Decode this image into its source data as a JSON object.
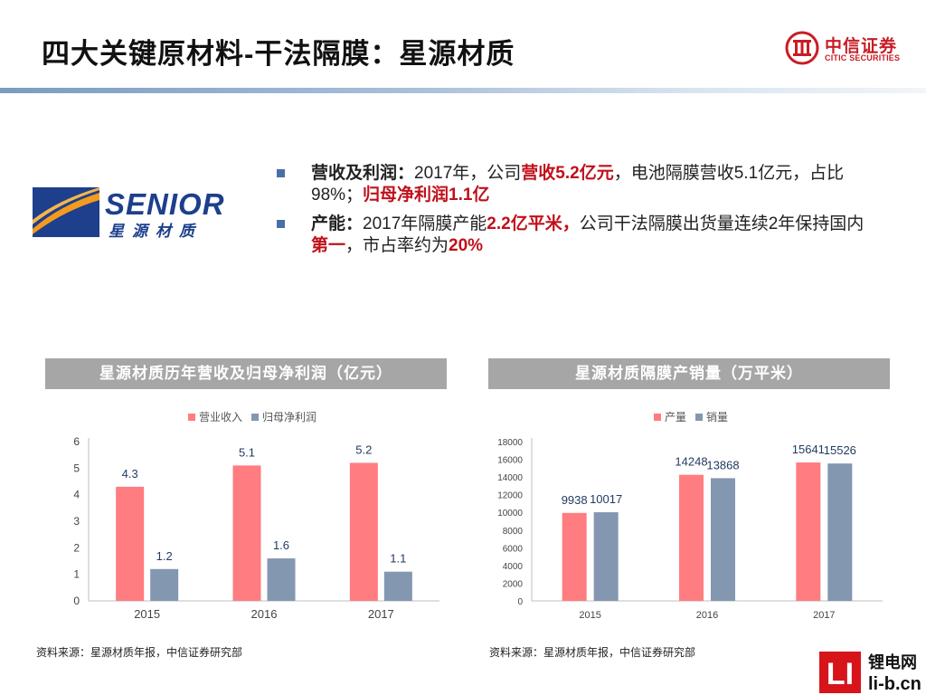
{
  "header": {
    "title": "四大关键原材料-干法隔膜：星源材质",
    "citic_logo": {
      "cn": "中信证券",
      "en": "CITIC SECURITIES",
      "icon": "citic-emblem-icon"
    }
  },
  "company_logo": {
    "word": "SENIOR",
    "cn": "星源材质",
    "icon": "senior-swoosh-icon"
  },
  "bullets": [
    {
      "label": "营收及利润：",
      "p1": "2017年，公司",
      "h1": "营收5.2亿元",
      "p2": "，电池隔膜营收5.1亿元，占比98%；",
      "h2": "归母净利润1.1亿"
    },
    {
      "label": "产能：",
      "p1": "2017年隔膜产能",
      "h1": "2.2亿平米，",
      "p2": "公司干法隔膜出货量连续2年保持国内",
      "h2": "第一",
      "p3": "，市占率约为",
      "h3": "20%"
    }
  ],
  "colors": {
    "series_a": "#ff7c80",
    "series_b": "#8497b0",
    "accent_red": "#c0101a",
    "title_bar": "#a6a6a6"
  },
  "chart_data": [
    {
      "type": "bar",
      "title": "星源材质历年营收及归母净利润（亿元）",
      "categories": [
        "2015",
        "2016",
        "2017"
      ],
      "series": [
        {
          "name": "营业收入",
          "values": [
            4.3,
            5.1,
            5.2
          ]
        },
        {
          "name": "归母净利润",
          "values": [
            1.2,
            1.6,
            1.1
          ]
        }
      ],
      "ylim": [
        0,
        6
      ],
      "yticks": [
        0,
        1,
        2,
        3,
        4,
        5,
        6
      ],
      "legend": "top",
      "grid": false
    },
    {
      "type": "bar",
      "title": "星源材质隔膜产销量（万平米）",
      "categories": [
        "2015",
        "2016",
        "2017"
      ],
      "series": [
        {
          "name": "产量",
          "values": [
            9938,
            14248,
            15641
          ]
        },
        {
          "name": "销量",
          "values": [
            10017,
            13868,
            15526
          ]
        }
      ],
      "ylim": [
        0,
        18000
      ],
      "yticks": [
        0,
        2000,
        4000,
        6000,
        8000,
        10000,
        12000,
        14000,
        16000,
        18000
      ],
      "legend": "top",
      "grid": false
    }
  ],
  "sources": {
    "left": "资料来源：星源材质年报，中信证券研究部",
    "right": "资料来源：星源材质年报，中信证券研究部"
  },
  "watermark": {
    "mark": "LI",
    "cn": "锂电网",
    "url": "li-b.cn"
  }
}
